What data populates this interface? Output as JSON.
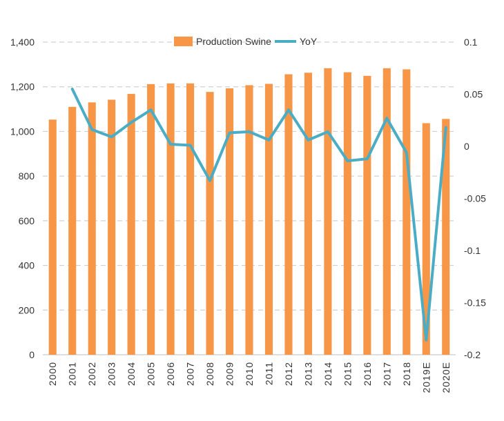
{
  "chart_data": {
    "type": "bar",
    "categories": [
      "2000",
      "2001",
      "2002",
      "2003",
      "2004",
      "2005",
      "2006",
      "2007",
      "2008",
      "2009",
      "2010",
      "2011",
      "2012",
      "2013",
      "2014",
      "2015",
      "2016",
      "2017",
      "2018",
      "2019E",
      "2020E"
    ],
    "series": [
      {
        "name": "Production Swine",
        "type": "bar",
        "axis": "left",
        "color": "#F79646",
        "values": [
          1053,
          1110,
          1130,
          1142,
          1168,
          1212,
          1215,
          1215,
          1177,
          1193,
          1207,
          1213,
          1256,
          1263,
          1283,
          1265,
          1249,
          1283,
          1278,
          1037,
          1056
        ]
      },
      {
        "name": "YoY",
        "type": "line",
        "axis": "right",
        "color": "#4BACC6",
        "values": [
          null,
          0.055,
          0.016,
          0.009,
          0.023,
          0.035,
          0.002,
          0.001,
          -0.033,
          0.013,
          0.014,
          0.006,
          0.035,
          0.006,
          0.014,
          -0.014,
          -0.012,
          0.027,
          -0.006,
          -0.186,
          0.018
        ]
      }
    ],
    "left_axis": {
      "ylim": [
        0,
        1400
      ],
      "ticks": [
        "0",
        "200",
        "400",
        "600",
        "800",
        "1,000",
        "1,200",
        "1,400"
      ],
      "tick_values": [
        0,
        200,
        400,
        600,
        800,
        1000,
        1200,
        1400
      ]
    },
    "right_axis": {
      "ylim": [
        -0.2,
        0.1
      ],
      "ticks": [
        "-0.2",
        "-0.15",
        "-0.1",
        "-0.05",
        "0",
        "0.05",
        "0.1"
      ],
      "tick_values": [
        -0.2,
        -0.15,
        -0.1,
        -0.05,
        0,
        0.05,
        0.1
      ]
    },
    "legend": {
      "position": "top-center",
      "items": [
        "Production Swine",
        "YoY"
      ]
    },
    "grid": true
  }
}
